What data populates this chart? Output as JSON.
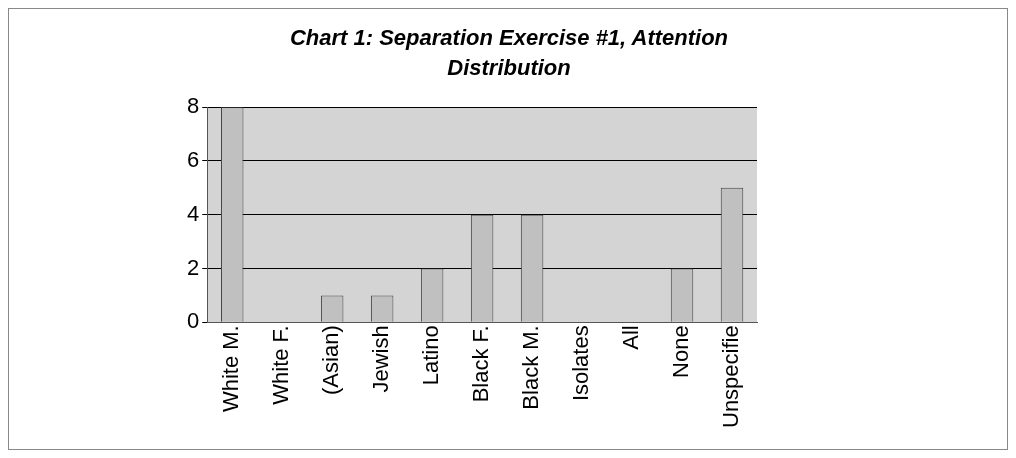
{
  "chart_data": {
    "type": "bar",
    "title": "Chart 1: Separation Exercise #1,  Attention Distribution",
    "categories": [
      "White M.",
      "White F.",
      "(Asian)",
      "Jewish",
      "Latino",
      "Black F.",
      "Black M.",
      "Isolates",
      "All",
      "None",
      "Unspecifie"
    ],
    "values": [
      8,
      0,
      1,
      1,
      2,
      4,
      4,
      0,
      0,
      2,
      5
    ],
    "color": "#c0c0c0",
    "ylim": [
      0,
      8
    ],
    "yticks": [
      0,
      2,
      4,
      6,
      8
    ],
    "grid": "y",
    "legend": false
  }
}
